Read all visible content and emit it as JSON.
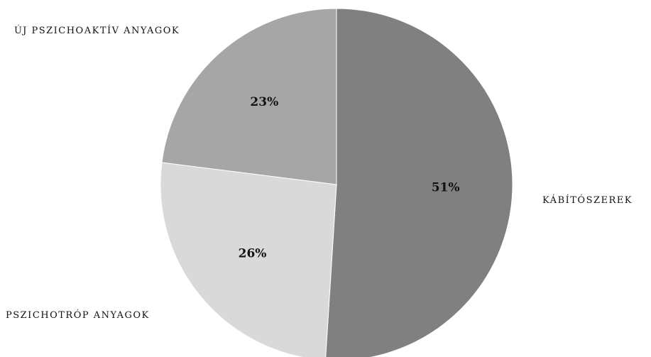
{
  "chart_data": {
    "type": "pie",
    "slices": [
      {
        "label": "KÁBÍTÓSZEREK",
        "value": 51,
        "display": "51%",
        "color": "#808080"
      },
      {
        "label": "PSZICHOTRÓP ANYAGOK",
        "value": 26,
        "display": "26%",
        "color": "#d9d9d9"
      },
      {
        "label": "ÚJ PSZICHOAKTÍV ANYAGOK",
        "value": 23,
        "display": "23%",
        "color": "#a6a6a6"
      }
    ],
    "start_angle": "12 o'clock",
    "direction": "clockwise",
    "legend": "none"
  }
}
